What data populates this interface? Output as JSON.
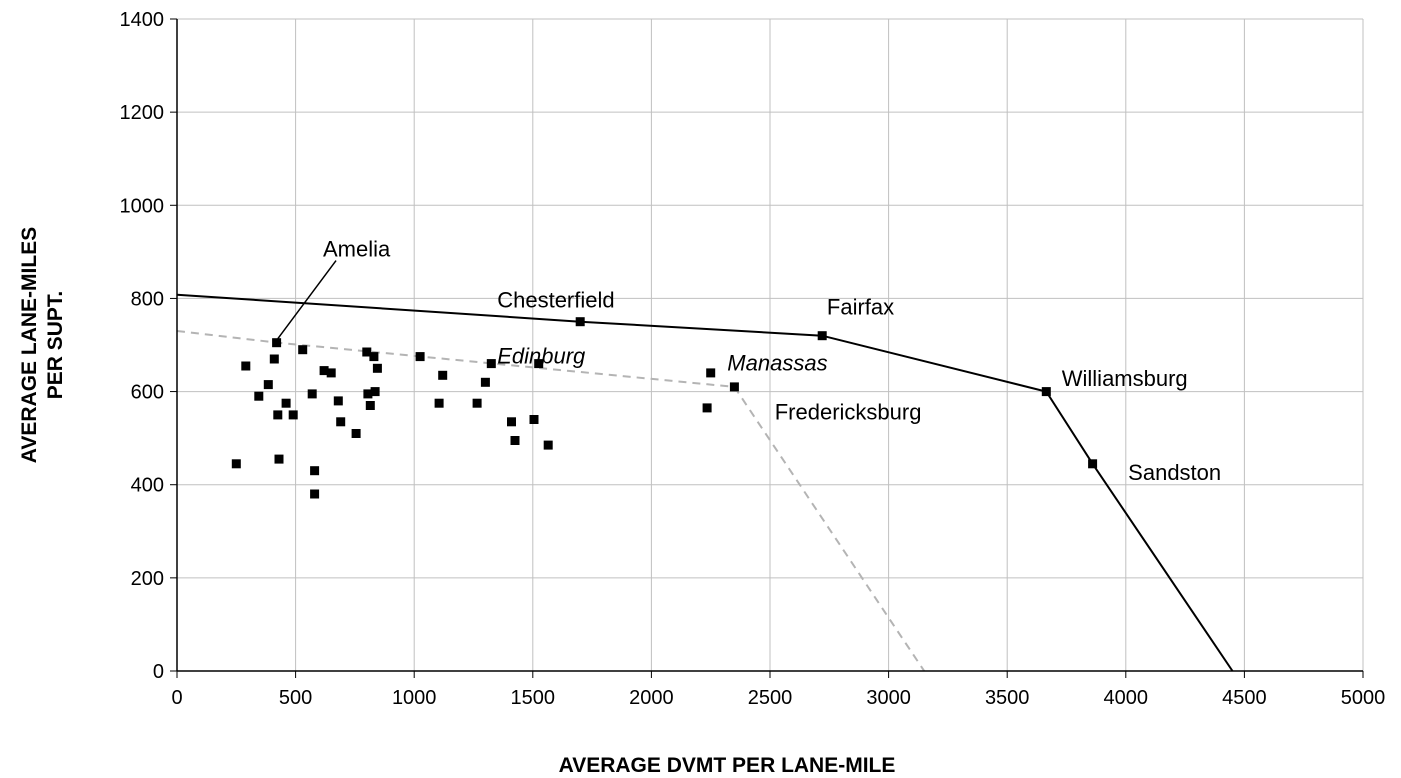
{
  "chart_data": {
    "type": "scatter",
    "title": "",
    "xlabel": "AVERAGE DVMT PER LANE-MILE",
    "ylabel_lines": [
      "AVERAGE LANE-MILES",
      "PER SUPT."
    ],
    "xlim": [
      0,
      5000
    ],
    "ylim": [
      0,
      1400
    ],
    "x_ticks": [
      0,
      500,
      1000,
      1500,
      2000,
      2500,
      3000,
      3500,
      4000,
      4500,
      5000
    ],
    "y_ticks": [
      0,
      200,
      400,
      600,
      800,
      1000,
      1200,
      1400
    ],
    "x_tick_labels": [
      "0",
      "500",
      "1000",
      "1500",
      "2000",
      "2500",
      "3000",
      "3500",
      "4000",
      "4500",
      "5000"
    ],
    "y_tick_labels": [
      "0",
      "200",
      "400",
      "600",
      "800",
      "1000",
      "1200",
      "1400"
    ],
    "grid": true,
    "legend": "none",
    "colors": {
      "points": "#000000",
      "frontier": "#000000",
      "dashed_frontier": "#b4b4b4",
      "grid": "#c0c0c0"
    },
    "series": [
      {
        "role": "points",
        "x": [
          250,
          290,
          345,
          385,
          410,
          420,
          425,
          430,
          460,
          490,
          530,
          570,
          580,
          580,
          620,
          650,
          680,
          690,
          755,
          800,
          805,
          815,
          830,
          835,
          845,
          1025,
          1105,
          1120,
          1265,
          1300,
          1325,
          1410,
          1425,
          1505,
          1525,
          1565,
          1700,
          2235,
          2250,
          2350,
          2720,
          3665,
          3860
        ],
        "y": [
          445,
          655,
          590,
          615,
          670,
          705,
          550,
          455,
          575,
          550,
          690,
          595,
          430,
          380,
          645,
          640,
          580,
          535,
          510,
          685,
          595,
          570,
          675,
          600,
          650,
          675,
          575,
          635,
          575,
          620,
          660,
          535,
          495,
          540,
          660,
          485,
          750,
          565,
          640,
          610,
          720,
          600,
          445
        ]
      },
      {
        "role": "frontier",
        "style": "solid",
        "x": [
          0,
          1700,
          2720,
          3665,
          3860,
          4450
        ],
        "y": [
          808,
          750,
          720,
          600,
          445,
          0
        ]
      },
      {
        "role": "frontier",
        "style": "dashed",
        "x": [
          0,
          425,
          2350,
          3150
        ],
        "y": [
          730,
          705,
          610,
          0
        ]
      }
    ],
    "annotations": [
      {
        "text": "Amelia",
        "x": 700,
        "y": 890,
        "style": "normal",
        "arrow_to": [
          425,
          705
        ]
      },
      {
        "text": "Chesterfield",
        "x": 1350,
        "y": 780,
        "style": "normal"
      },
      {
        "text": "Fairfax",
        "x": 2740,
        "y": 765,
        "style": "normal"
      },
      {
        "text": "Edinburg",
        "x": 1350,
        "y": 660,
        "style": "italic"
      },
      {
        "text": "Manassas",
        "x": 2320,
        "y": 645,
        "style": "italic"
      },
      {
        "text": "Williamsburg",
        "x": 3730,
        "y": 612,
        "style": "normal"
      },
      {
        "text": "Fredericksburg",
        "x": 2520,
        "y": 540,
        "style": "normal"
      },
      {
        "text": "Sandston",
        "x": 4010,
        "y": 410,
        "style": "normal"
      }
    ]
  }
}
